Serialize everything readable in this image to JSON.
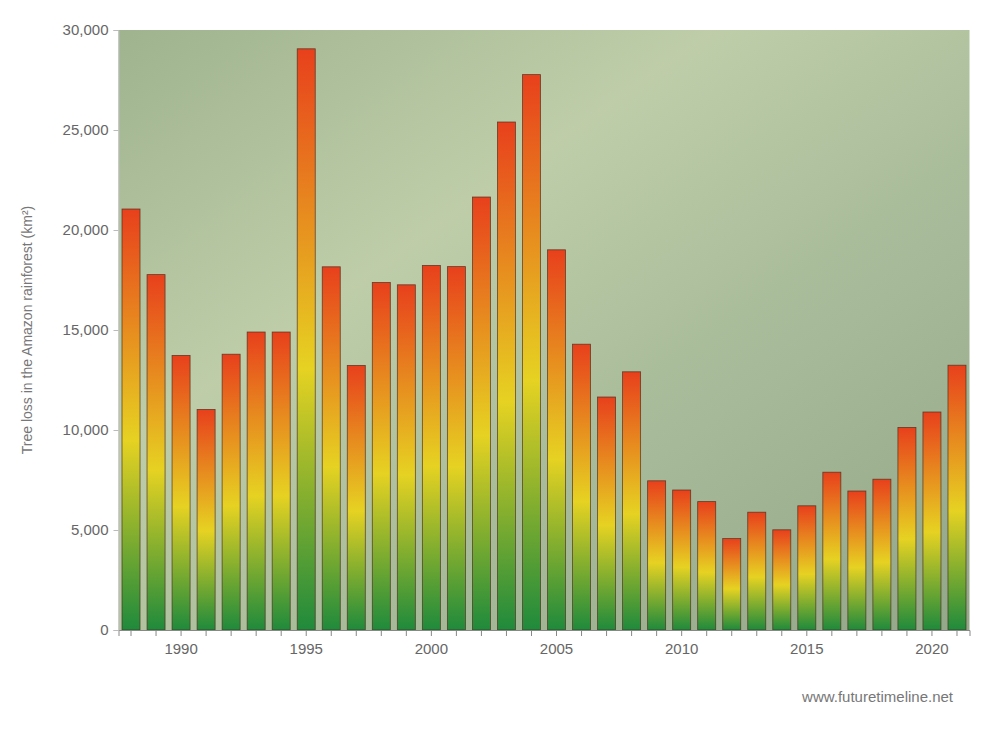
{
  "chart_data": {
    "type": "bar",
    "y_label": "Tree loss in the Amazon rainforest (km²)",
    "source": "www.futuretimeline.net",
    "categories": [
      null,
      null,
      "1990",
      null,
      null,
      null,
      null,
      "1995",
      null,
      null,
      null,
      null,
      "2000",
      null,
      null,
      null,
      null,
      "2005",
      null,
      null,
      null,
      null,
      "2010",
      null,
      null,
      null,
      null,
      "2015",
      null,
      null,
      null,
      null,
      "2020",
      null
    ],
    "values": [
      21050,
      17770,
      13730,
      11030,
      13790,
      14900,
      14900,
      29060,
      18160,
      13230,
      17380,
      17260,
      18230,
      18170,
      21650,
      25400,
      27770,
      19010,
      14290,
      11650,
      12910,
      7460,
      7000,
      6420,
      4570,
      5890,
      5010,
      6210,
      7890,
      6950,
      7540,
      10130,
      10900,
      13240
    ],
    "color": "#e8401c",
    "ylim": [
      0,
      30000
    ],
    "yticks": [
      0,
      {
        "value": 5000,
        "label": "5,000"
      },
      {
        "value": 10000,
        "label": "10,000"
      },
      {
        "value": 15000,
        "label": "15,000"
      },
      {
        "value": 20000,
        "label": "20,000"
      },
      {
        "value": 25000,
        "label": "25,000"
      },
      {
        "value": 30000,
        "label": "30,000"
      }
    ],
    "grid": false
  }
}
